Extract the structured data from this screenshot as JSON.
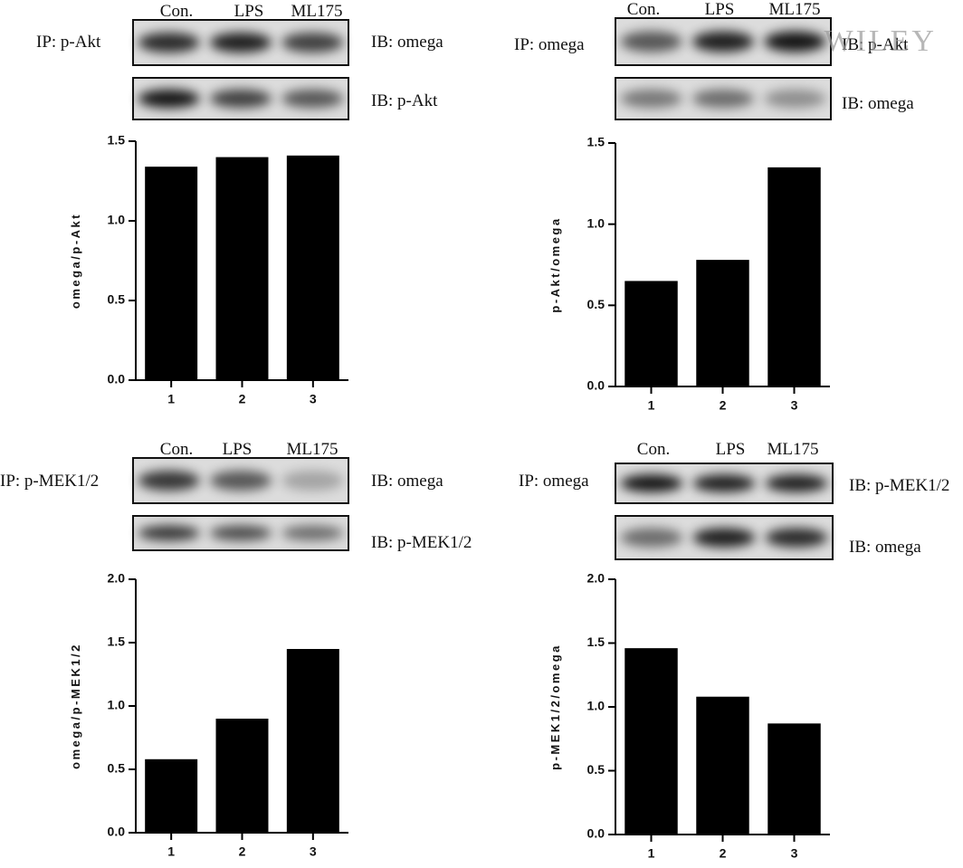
{
  "chart_data": [
    {
      "type": "bar",
      "y_label": "omega/p-Akt",
      "categories": [
        "1",
        "2",
        "3"
      ],
      "values": [
        1.34,
        1.4,
        1.41
      ],
      "color": "#000000",
      "ylim": [
        0,
        1.5
      ],
      "yticks": [
        {
          "value": 0,
          "label": "0.0"
        },
        0.5,
        {
          "value": 1,
          "label": "1.0"
        },
        1.5
      ],
      "lanes": [
        "Con.",
        "LPS",
        "ML175"
      ],
      "ip": "IP: p-Akt",
      "ib": [
        "IB: omega",
        "IB: p-Akt"
      ]
    },
    {
      "type": "bar",
      "y_label": "p-Akt/omega",
      "categories": [
        "1",
        "2",
        "3"
      ],
      "values": [
        0.65,
        0.78,
        1.35
      ],
      "color": "#000000",
      "ylim": [
        0,
        1.5
      ],
      "yticks": [
        {
          "value": 0,
          "label": "0.0"
        },
        0.5,
        {
          "value": 1,
          "label": "1.0"
        },
        1.5
      ],
      "lanes": [
        "Con.",
        "LPS",
        "ML175"
      ],
      "ip": "IP: omega",
      "ib": [
        "IB: p-Akt",
        "IB: omega"
      ]
    },
    {
      "type": "bar",
      "y_label": "omega/p-MEK1/2",
      "categories": [
        "1",
        "2",
        "3"
      ],
      "values": [
        0.58,
        0.9,
        1.45
      ],
      "color": "#000000",
      "ylim": [
        0,
        2
      ],
      "yticks": [
        {
          "value": 0,
          "label": "0.0"
        },
        0.5,
        {
          "value": 1,
          "label": "1.0"
        },
        1.5,
        {
          "value": 2,
          "label": "2.0"
        }
      ],
      "lanes": [
        "Con.",
        "LPS",
        "ML175"
      ],
      "ip": "IP: p-MEK1/2",
      "ib": [
        "IB: omega",
        "IB: p-MEK1/2"
      ]
    },
    {
      "type": "bar",
      "y_label": "p-MEK1/2/omega",
      "categories": [
        "1",
        "2",
        "3"
      ],
      "values": [
        1.46,
        1.08,
        0.87
      ],
      "color": "#000000",
      "ylim": [
        0,
        2
      ],
      "yticks": [
        {
          "value": 0,
          "label": "0.0"
        },
        0.5,
        {
          "value": 1,
          "label": "1.0"
        },
        1.5,
        {
          "value": 2,
          "label": "2.0"
        }
      ],
      "lanes": [
        "Con.",
        "LPS",
        "ML175"
      ],
      "ip": "IP: omega",
      "ib": [
        "IB: p-MEK1/2",
        "IB: omega"
      ]
    }
  ],
  "watermark": "WILEY"
}
